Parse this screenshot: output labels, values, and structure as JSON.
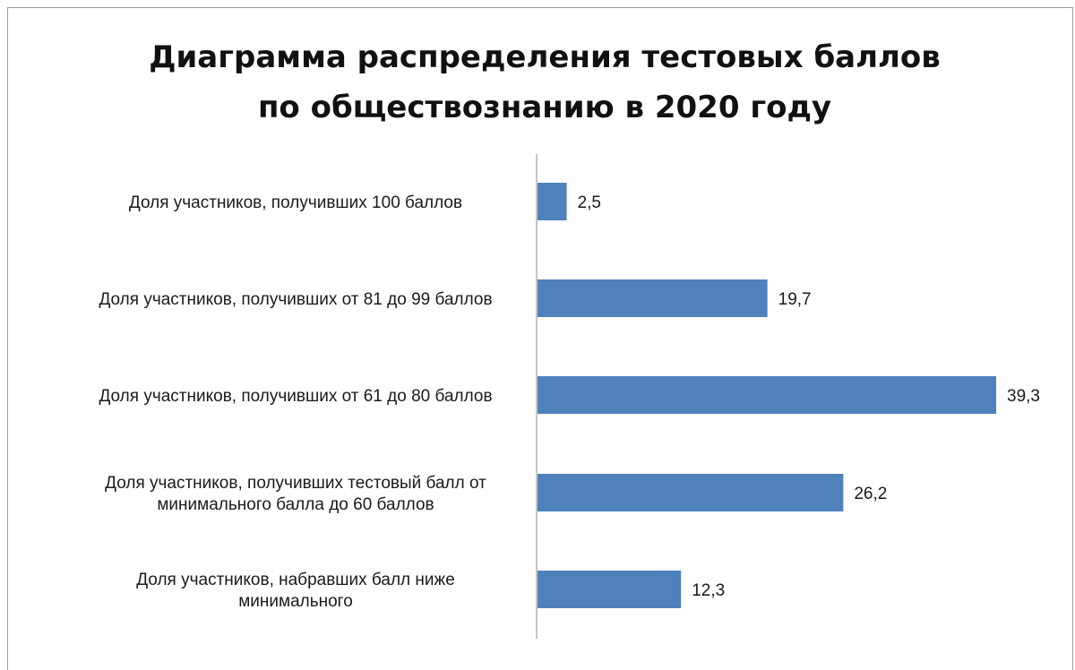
{
  "chart_data": {
    "type": "bar",
    "orientation": "horizontal",
    "title": "Диаграмма распределения тестовых баллов по обществознанию в 2020 году",
    "title_lines": [
      "Диаграмма распределения тестовых баллов",
      "по обществознанию в 2020 году"
    ],
    "categories": [
      [
        "Доля участников, получивших 100 баллов"
      ],
      [
        "Доля участников, получивших от 81 до 99 баллов"
      ],
      [
        "Доля участников, получивших от 61 до 80 баллов"
      ],
      [
        "Доля участников, получивших тестовый балл от",
        "минимального балла до 60 баллов"
      ],
      [
        "Доля участников, набравших балл ниже",
        "минимального"
      ]
    ],
    "values": [
      2.5,
      19.7,
      39.3,
      26.2,
      12.3
    ],
    "value_labels": [
      "2,5",
      "19,7",
      "39,3",
      "26,2",
      "12,3"
    ],
    "xlim": [
      0,
      39.3
    ],
    "grid": false,
    "legend": "none",
    "bar_color": "#4f81bd"
  }
}
